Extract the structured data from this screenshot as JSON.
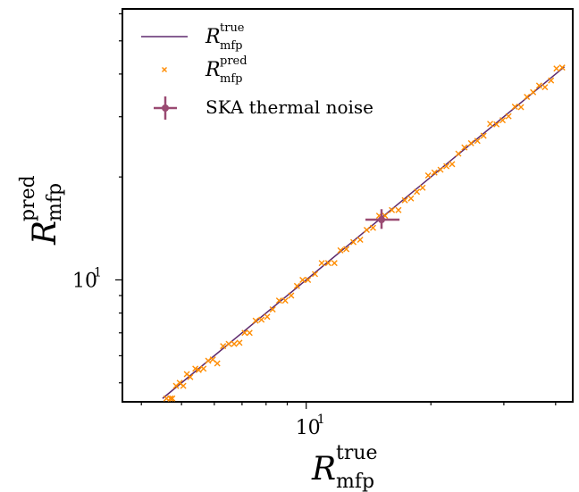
{
  "chart_data": {
    "type": "scatter",
    "xlabel": {
      "base": "R",
      "sup": "true",
      "sub": "mfp"
    },
    "ylabel": {
      "base": "R",
      "sup": "pred",
      "sub": "mfp"
    },
    "x_scale": "log",
    "y_scale": "log",
    "xlim": [
      3.6,
      44
    ],
    "ylim": [
      4.4,
      62
    ],
    "x_tick_labels": [
      {
        "value": 10,
        "label": "10",
        "exp": "1"
      }
    ],
    "y_tick_labels": [
      {
        "value": 10,
        "label": "10",
        "exp": "1"
      }
    ],
    "grid": false,
    "legend_position": "top-left",
    "colors": {
      "true_line": "#5e2a6e",
      "pred_points": "#ff8c00",
      "ska_marker": "#9a4a72"
    },
    "series": [
      {
        "legend": {
          "base": "R",
          "sup": "true",
          "sub": "mfp"
        },
        "kind": "line",
        "x": [
          4.5,
          42
        ],
        "y": [
          4.5,
          42
        ]
      },
      {
        "legend": {
          "base": "R",
          "sup": "pred",
          "sub": "mfp"
        },
        "kind": "scatter",
        "x": [
          4.6,
          4.7,
          4.75,
          4.85,
          4.95,
          5.05,
          5.15,
          5.25,
          5.4,
          5.5,
          5.65,
          5.8,
          5.95,
          6.1,
          6.3,
          6.5,
          6.7,
          6.9,
          7.1,
          7.3,
          7.55,
          7.8,
          8.05,
          8.3,
          8.6,
          8.9,
          9.2,
          9.5,
          9.8,
          10.1,
          10.5,
          10.9,
          11.3,
          11.7,
          12.1,
          12.5,
          13.0,
          13.5,
          14.0,
          14.5,
          15.0,
          15.5,
          16.1,
          16.7,
          17.3,
          17.9,
          18.5,
          19.1,
          19.7,
          20.4,
          21.1,
          21.8,
          22.5,
          23.3,
          24.1,
          25.0,
          25.9,
          26.8,
          27.8,
          28.8,
          29.8,
          30.8,
          31.9,
          33.0,
          34.1,
          35.3,
          36.5,
          37.7,
          39.0,
          40.2,
          41.5
        ],
        "y": [
          4.5,
          4.5,
          4.5,
          4.9,
          5.0,
          4.9,
          5.3,
          5.2,
          5.5,
          5.45,
          5.5,
          5.8,
          5.85,
          5.7,
          6.4,
          6.5,
          6.5,
          6.55,
          7.0,
          7.0,
          7.6,
          7.65,
          7.8,
          8.2,
          8.7,
          8.7,
          9.0,
          9.6,
          10.0,
          10.0,
          10.4,
          11.2,
          11.2,
          11.2,
          12.2,
          12.3,
          12.9,
          13.1,
          14.0,
          14.2,
          15.4,
          15.4,
          16.0,
          16.0,
          17.1,
          17.3,
          18.1,
          18.6,
          20.2,
          20.6,
          21.0,
          21.5,
          21.8,
          23.4,
          24.4,
          25.1,
          25.5,
          26.4,
          28.6,
          28.5,
          29.3,
          30.1,
          32.1,
          32.0,
          34.3,
          35.4,
          37.0,
          36.6,
          38.3,
          41.5,
          41.8
        ]
      },
      {
        "legend": "SKA thermal noise",
        "kind": "errorbar",
        "x": [
          15.2
        ],
        "y": [
          15.0
        ],
        "xerr": [
          [
            1.3
          ],
          [
            1.6
          ]
        ],
        "yerr": [
          [
            0.9
          ],
          [
            1.1
          ]
        ]
      }
    ]
  }
}
